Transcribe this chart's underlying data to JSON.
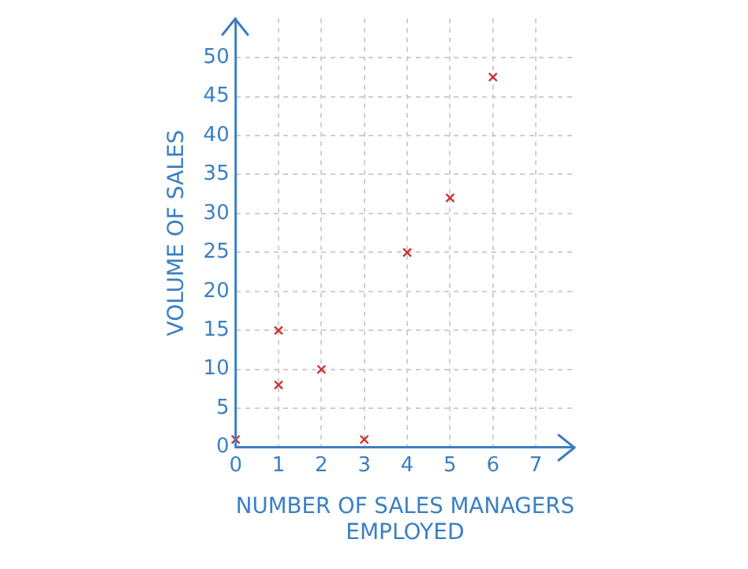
{
  "chart_data": {
    "type": "scatter",
    "xlabel": "NUMBER OF SALES MANAGERS EMPLOYED",
    "ylabel": "VOLUME OF SALES",
    "series": [
      {
        "color": "#cc3333",
        "x": [
          0,
          1,
          1,
          2,
          3,
          4,
          5,
          6
        ],
        "values": [
          1,
          15,
          8,
          10,
          1,
          25,
          32,
          47.5
        ]
      }
    ],
    "xlim": [
      0,
      7.9
    ],
    "ylim": [
      0,
      55
    ],
    "xticks": [
      0,
      1,
      2,
      3,
      4,
      5,
      6,
      7
    ],
    "yticks": [
      0,
      5,
      10,
      15,
      20,
      25,
      30,
      35,
      40,
      45,
      50
    ],
    "grid": true,
    "marker": "cross",
    "legend": false
  }
}
